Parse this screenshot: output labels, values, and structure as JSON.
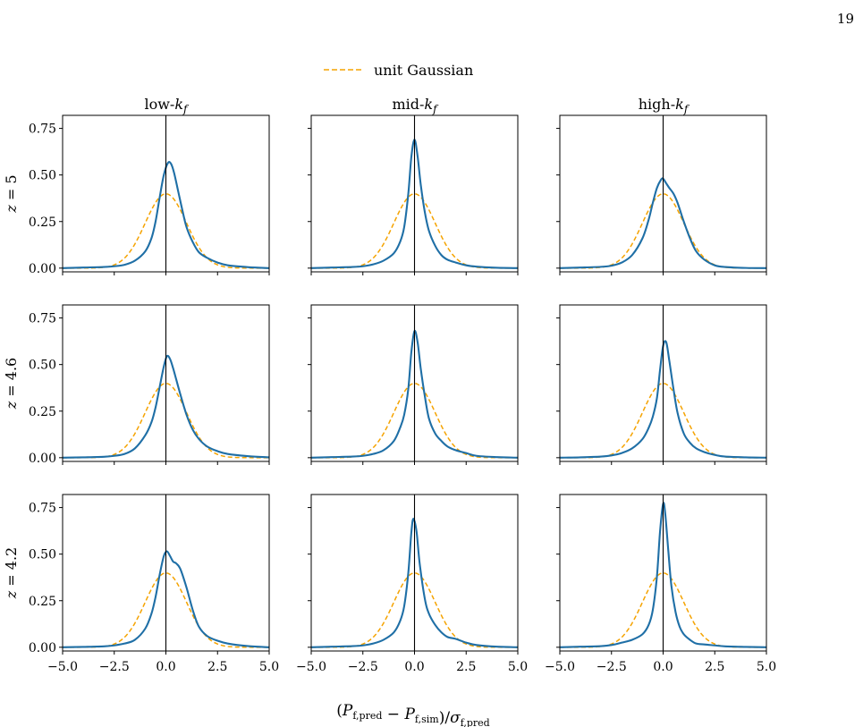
{
  "page": {
    "number": "19"
  },
  "legend": {
    "label": "unit Gaussian"
  },
  "colors": {
    "curve": "#1f6fa6",
    "gaussian": "#f5a300",
    "axes": "#000000"
  },
  "columns": [
    "low-k_f",
    "mid-k_f",
    "high-k_f"
  ],
  "rows": [
    "z = 5",
    "z = 4.6",
    "z = 4.2"
  ],
  "xlabel": "(P_f,pred − P_f,sim)/σ_f,pred",
  "chart_data": {
    "type": "line",
    "layout": "3x3 grid of panels, rows share y-axis, columns share x-axis",
    "xlim": [
      -5.0,
      5.0
    ],
    "ylim": [
      -0.02,
      0.82
    ],
    "xticks": [
      -5.0,
      -2.5,
      0.0,
      2.5,
      5.0
    ],
    "xtick_labels": [
      "−5.0",
      "−2.5",
      "0.0",
      "2.5",
      "5.0"
    ],
    "yticks": [
      0.0,
      0.25,
      0.5,
      0.75
    ],
    "ytick_labels": [
      "0.00",
      "0.25",
      "0.50",
      "0.75"
    ],
    "vertical_line_x": 0.0,
    "legend_position": "top-center",
    "grid": false,
    "reference_series": {
      "name": "unit Gaussian",
      "style": "dashed",
      "mean": 0,
      "sigma": 1,
      "peak": 0.399
    },
    "panels": [
      {
        "row": "z = 5",
        "col": "low-k_f",
        "x": [
          -5,
          -4,
          -3,
          -2.5,
          -2,
          -1.5,
          -1,
          -0.7,
          -0.5,
          -0.3,
          -0.1,
          0.1,
          0.25,
          0.4,
          0.6,
          0.8,
          1,
          1.3,
          1.6,
          2,
          2.5,
          3,
          4,
          5
        ],
        "y": [
          0.0,
          0.003,
          0.006,
          0.01,
          0.018,
          0.04,
          0.09,
          0.16,
          0.25,
          0.38,
          0.5,
          0.565,
          0.56,
          0.51,
          0.41,
          0.31,
          0.22,
          0.14,
          0.085,
          0.055,
          0.03,
          0.015,
          0.005,
          0.0
        ]
      },
      {
        "row": "z = 5",
        "col": "mid-k_f",
        "x": [
          -5,
          -4,
          -3,
          -2.5,
          -2,
          -1.5,
          -1,
          -0.7,
          -0.5,
          -0.3,
          -0.15,
          0,
          0.15,
          0.3,
          0.5,
          0.7,
          1,
          1.3,
          1.6,
          2,
          2.5,
          3,
          4,
          5
        ],
        "y": [
          0.0,
          0.003,
          0.006,
          0.01,
          0.02,
          0.04,
          0.08,
          0.14,
          0.22,
          0.4,
          0.6,
          0.69,
          0.6,
          0.45,
          0.3,
          0.2,
          0.12,
          0.07,
          0.045,
          0.03,
          0.015,
          0.008,
          0.002,
          0.0
        ]
      },
      {
        "row": "z = 5",
        "col": "high-k_f",
        "x": [
          -5,
          -4,
          -3,
          -2.5,
          -2,
          -1.5,
          -1,
          -0.7,
          -0.5,
          -0.3,
          -0.1,
          0,
          0.15,
          0.3,
          0.5,
          0.7,
          1,
          1.3,
          1.6,
          2,
          2.5,
          3,
          4,
          5
        ],
        "y": [
          0.0,
          0.003,
          0.007,
          0.013,
          0.03,
          0.07,
          0.16,
          0.26,
          0.35,
          0.43,
          0.475,
          0.48,
          0.455,
          0.43,
          0.4,
          0.35,
          0.25,
          0.16,
          0.09,
          0.045,
          0.015,
          0.006,
          0.001,
          0.0
        ]
      },
      {
        "row": "z = 4.6",
        "col": "low-k_f",
        "x": [
          -5,
          -4,
          -3,
          -2.5,
          -2,
          -1.5,
          -1,
          -0.7,
          -0.5,
          -0.3,
          -0.1,
          0.05,
          0.2,
          0.35,
          0.5,
          0.7,
          1,
          1.3,
          1.6,
          2,
          2.5,
          3,
          4,
          5
        ],
        "y": [
          0.0,
          0.002,
          0.005,
          0.01,
          0.02,
          0.05,
          0.12,
          0.19,
          0.27,
          0.38,
          0.49,
          0.545,
          0.53,
          0.48,
          0.42,
          0.34,
          0.23,
          0.15,
          0.1,
          0.06,
          0.035,
          0.02,
          0.008,
          0.002
        ]
      },
      {
        "row": "z = 4.6",
        "col": "mid-k_f",
        "x": [
          -5,
          -4,
          -3,
          -2.5,
          -2,
          -1.5,
          -1,
          -0.7,
          -0.5,
          -0.3,
          -0.15,
          0,
          0.15,
          0.3,
          0.5,
          0.7,
          1,
          1.3,
          1.6,
          2,
          2.5,
          3,
          4,
          5
        ],
        "y": [
          0.0,
          0.003,
          0.006,
          0.01,
          0.02,
          0.04,
          0.09,
          0.16,
          0.23,
          0.37,
          0.57,
          0.68,
          0.62,
          0.48,
          0.33,
          0.21,
          0.13,
          0.09,
          0.06,
          0.04,
          0.025,
          0.01,
          0.003,
          0.0
        ]
      },
      {
        "row": "z = 4.6",
        "col": "high-k_f",
        "x": [
          -5,
          -4,
          -3,
          -2.5,
          -2,
          -1.5,
          -1,
          -0.7,
          -0.5,
          -0.3,
          -0.15,
          0,
          0.15,
          0.3,
          0.5,
          0.7,
          1,
          1.3,
          1.6,
          2,
          2.5,
          3,
          4,
          5
        ],
        "y": [
          0.0,
          0.002,
          0.006,
          0.012,
          0.025,
          0.05,
          0.1,
          0.16,
          0.22,
          0.32,
          0.47,
          0.6,
          0.62,
          0.52,
          0.37,
          0.24,
          0.13,
          0.08,
          0.05,
          0.03,
          0.015,
          0.006,
          0.002,
          0.0
        ]
      },
      {
        "row": "z = 4.2",
        "col": "low-k_f",
        "x": [
          -5,
          -4,
          -3,
          -2.5,
          -2,
          -1.5,
          -1,
          -0.7,
          -0.5,
          -0.3,
          -0.1,
          0.05,
          0.2,
          0.35,
          0.5,
          0.7,
          1,
          1.3,
          1.6,
          2,
          2.5,
          3,
          4,
          5
        ],
        "y": [
          0.0,
          0.002,
          0.005,
          0.01,
          0.02,
          0.04,
          0.1,
          0.18,
          0.27,
          0.39,
          0.49,
          0.515,
          0.49,
          0.46,
          0.45,
          0.42,
          0.32,
          0.2,
          0.11,
          0.06,
          0.035,
          0.02,
          0.006,
          0.0
        ]
      },
      {
        "row": "z = 4.2",
        "col": "mid-k_f",
        "x": [
          -5,
          -4,
          -3,
          -2.5,
          -2,
          -1.5,
          -1,
          -0.7,
          -0.5,
          -0.3,
          -0.15,
          -0.05,
          0.1,
          0.25,
          0.5,
          0.7,
          1,
          1.3,
          1.6,
          2,
          2.5,
          3,
          4,
          5
        ],
        "y": [
          0.0,
          0.003,
          0.006,
          0.01,
          0.02,
          0.04,
          0.08,
          0.14,
          0.22,
          0.4,
          0.62,
          0.69,
          0.62,
          0.45,
          0.26,
          0.18,
          0.12,
          0.08,
          0.055,
          0.045,
          0.025,
          0.012,
          0.003,
          0.0
        ]
      },
      {
        "row": "z = 4.2",
        "col": "high-k_f",
        "x": [
          -5,
          -4,
          -3,
          -2.5,
          -2,
          -1.5,
          -1,
          -0.7,
          -0.5,
          -0.3,
          -0.15,
          0,
          0.1,
          0.25,
          0.4,
          0.6,
          0.8,
          1,
          1.3,
          1.6,
          2,
          2.5,
          3,
          4,
          5
        ],
        "y": [
          0.0,
          0.003,
          0.006,
          0.012,
          0.025,
          0.04,
          0.07,
          0.12,
          0.2,
          0.38,
          0.62,
          0.77,
          0.72,
          0.52,
          0.33,
          0.19,
          0.11,
          0.07,
          0.04,
          0.02,
          0.015,
          0.01,
          0.005,
          0.002,
          0.0
        ]
      }
    ]
  }
}
